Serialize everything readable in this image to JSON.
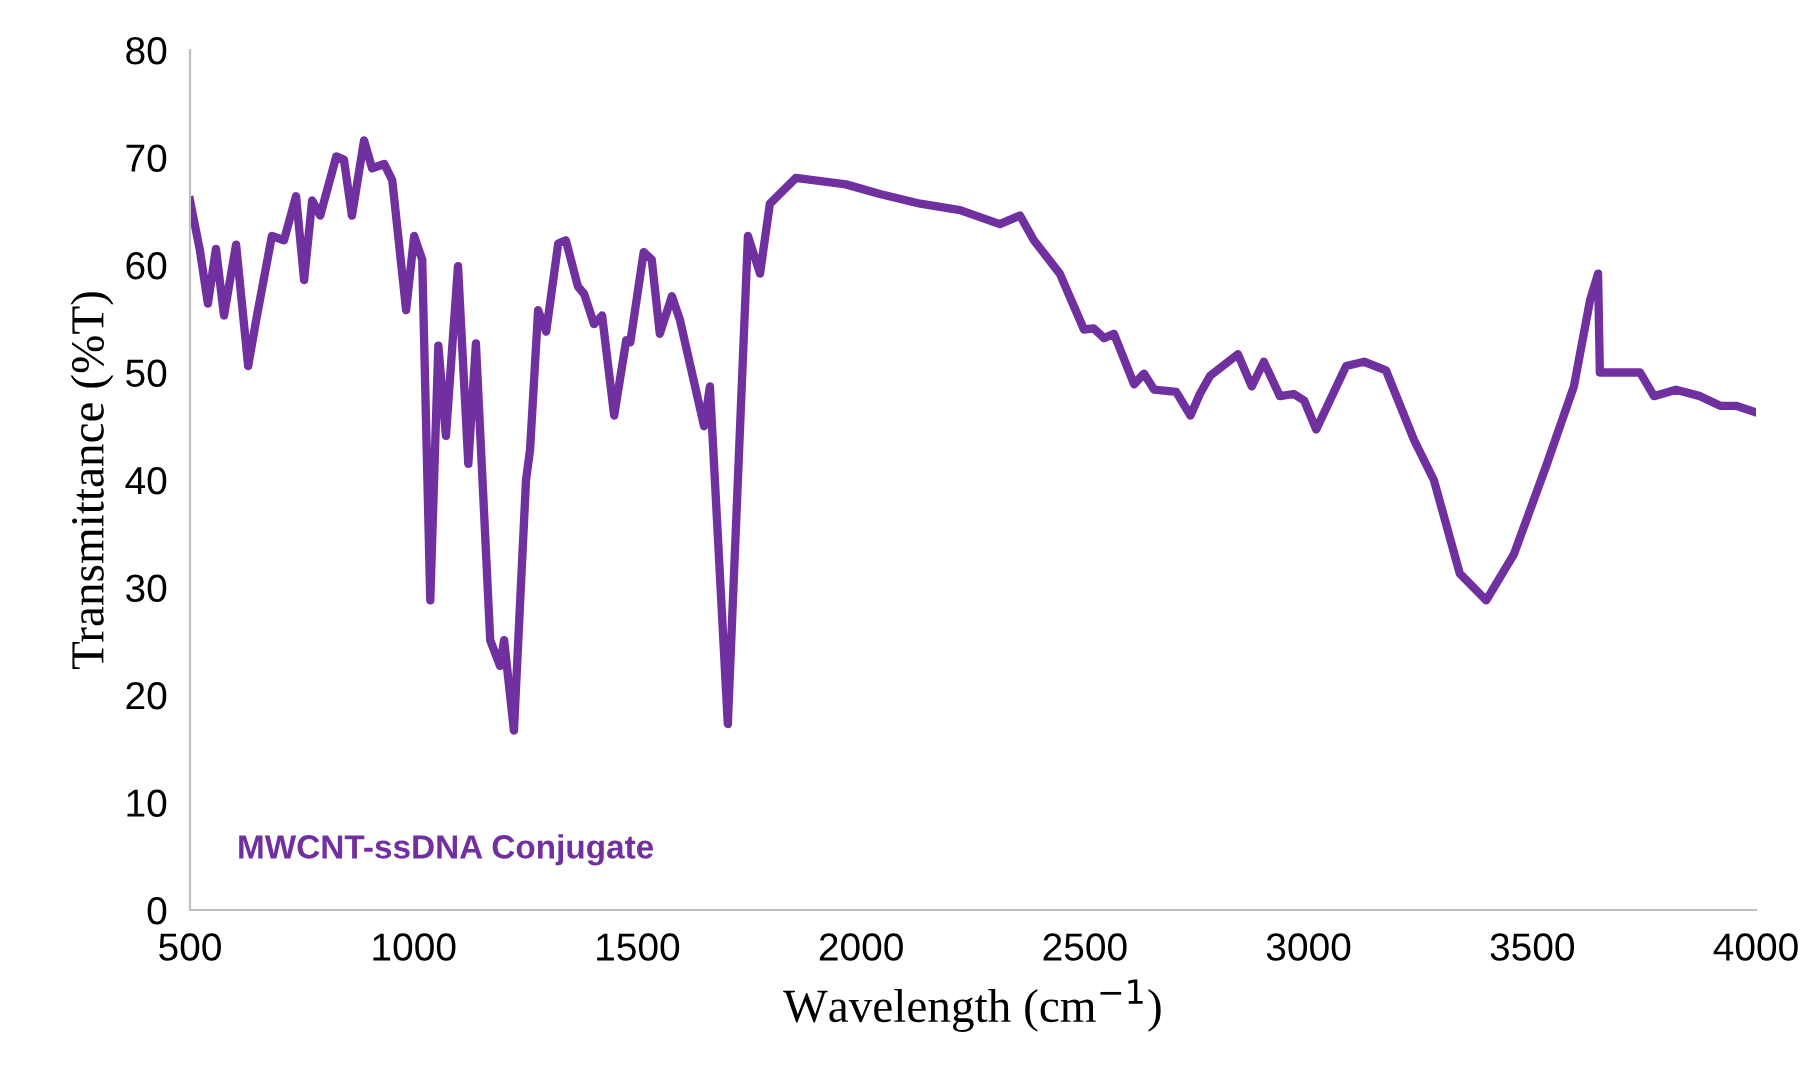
{
  "chart_data": {
    "type": "line",
    "xlabel": "Wavelength (cm$^{−1}$)",
    "ylabel": "Transmittance (%T)",
    "annotations": [
      "MWCNT-ssDNA Conjugate"
    ],
    "xlim": [
      500,
      4000
    ],
    "xticks": [
      500,
      1000,
      1500,
      2000,
      2500,
      3000,
      3500,
      4000
    ],
    "ylim": [
      0,
      80
    ],
    "yticks": [
      0,
      10,
      20,
      30,
      40,
      50,
      60,
      70,
      80
    ],
    "grid": false,
    "marker": "none",
    "line_style": "solid",
    "series": [
      {
        "color": "#7030a0",
        "x": [
          500,
          522,
          540,
          558,
          576,
          603,
          630,
          648,
          683,
          710,
          737,
          755,
          773,
          791,
          827,
          844,
          862,
          889,
          907,
          934,
          952,
          983,
          1001,
          1019,
          1037,
          1055,
          1072,
          1099,
          1122,
          1139,
          1171,
          1193,
          1202,
          1224,
          1251,
          1260,
          1278,
          1296,
          1323,
          1340,
          1367,
          1381,
          1403,
          1421,
          1448,
          1475,
          1484,
          1514,
          1532,
          1550,
          1577,
          1595,
          1649,
          1662,
          1702,
          1747,
          1774,
          1796,
          1854,
          1966,
          2042,
          2132,
          2221,
          2310,
          2355,
          2386,
          2444,
          2498,
          2520,
          2543,
          2565,
          2610,
          2632,
          2655,
          2704,
          2736,
          2757,
          2780,
          2842,
          2873,
          2900,
          2936,
          2967,
          2990,
          3017,
          3084,
          3124,
          3173,
          3236,
          3280,
          3338,
          3397,
          3459,
          3531,
          3593,
          3629,
          3647,
          3651,
          3741,
          3772,
          3821,
          3875,
          3920,
          3955,
          4000
        ],
        "values": [
          66,
          61.4,
          56.4,
          61.5,
          55.3,
          61.9,
          50.6,
          54.9,
          62.7,
          62.3,
          66.4,
          58.6,
          66,
          64.6,
          70.1,
          69.8,
          64.6,
          71.6,
          69,
          69.4,
          67.9,
          55.8,
          62.7,
          60.5,
          28.8,
          52.5,
          44.1,
          59.9,
          41.5,
          52.7,
          25.1,
          22.7,
          25.1,
          16.7,
          40,
          42.8,
          55.8,
          53.8,
          62,
          62.3,
          58,
          57.3,
          54.5,
          55.3,
          46,
          53,
          52.8,
          61.2,
          60.5,
          53.6,
          57.1,
          54.9,
          45,
          48.7,
          17.3,
          62.7,
          59.2,
          65.7,
          68.1,
          67.5,
          66.6,
          65.7,
          65.1,
          63.8,
          64.6,
          62.3,
          59.2,
          54,
          54.1,
          53.2,
          53.6,
          48.9,
          49.9,
          48.4,
          48.2,
          46,
          48,
          49.7,
          51.7,
          48.7,
          51,
          47.8,
          48,
          47.4,
          44.7,
          50.6,
          51,
          50.2,
          43.7,
          40,
          31.3,
          28.8,
          33.1,
          41.3,
          48.7,
          56.7,
          59.2,
          50,
          50,
          47.8,
          48.4,
          47.8,
          46.9,
          46.9,
          46.3
        ]
      }
    ]
  }
}
